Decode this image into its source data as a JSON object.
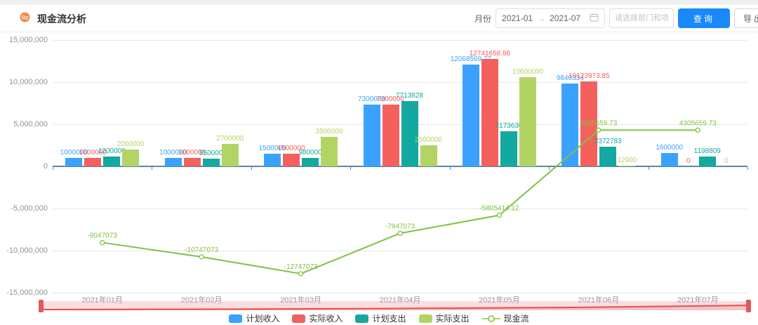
{
  "header": {
    "title": "现金流分析",
    "month_label": "月份",
    "date_start": "2021-01",
    "range_separator": "→",
    "date_end": "2021-07",
    "filter_placeholder": "请选择部门和项目",
    "query_button": "查询",
    "export_button": "导出"
  },
  "colors": {
    "accent_blue": "#1989fa",
    "title_icon": "#f08c4a",
    "axis_line": "#5b87a8",
    "grid_line": "#e8e8e8",
    "tick_label": "#909399",
    "slider_fill": "#f7b4b4",
    "slider_stroke": "#e34f4f"
  },
  "chart_data": {
    "type": "bar",
    "title": "现金流分析",
    "categories": [
      "2021年01月",
      "2021年02月",
      "2021年03月",
      "2021年04月",
      "2021年05月",
      "2021年06月",
      "2021年07月"
    ],
    "series": [
      {
        "name": "计划收入",
        "key": "planned-income",
        "type": "bar",
        "color": "#3aa1ff",
        "values": [
          1000000,
          1000000,
          1500000,
          7300000,
          12068569.77,
          9840334,
          1600000
        ]
      },
      {
        "name": "实际收入",
        "key": "actual-income",
        "type": "bar",
        "color": "#f4605c",
        "values": [
          1000000,
          1000000,
          1500000,
          7300000,
          12741658.88,
          10123973.85,
          0
        ]
      },
      {
        "name": "计划支出",
        "key": "planned-expense",
        "type": "bar",
        "color": "#13a8a0",
        "values": [
          1200000,
          950000,
          980000,
          7713828,
          4173630,
          2372783,
          1198809
        ]
      },
      {
        "name": "实际支出",
        "key": "actual-expense",
        "type": "bar",
        "color": "#b2d465",
        "values": [
          2000000,
          2700000,
          3500000,
          2500000,
          10600000,
          12900,
          0
        ]
      },
      {
        "name": "现金流",
        "key": "cash-flow",
        "type": "line",
        "color": "#7fc342",
        "values": [
          -9047073,
          -10747073,
          -12747073,
          -7947073,
          -5805414.12,
          4305659.73,
          4305659.73
        ]
      }
    ],
    "ylim": [
      -15000000,
      15000000
    ],
    "ytick_step": 5000000,
    "ytick_labels": [
      "15,000,000",
      "10,000,000",
      "5,000,000",
      "0",
      "-5,000,000",
      "-10,000,000",
      "-15,000,000"
    ],
    "grid": true,
    "legend_position": "bottom",
    "legend": [
      "计划收入",
      "实际收入",
      "计划支出",
      "实际支出",
      "现金流"
    ]
  }
}
